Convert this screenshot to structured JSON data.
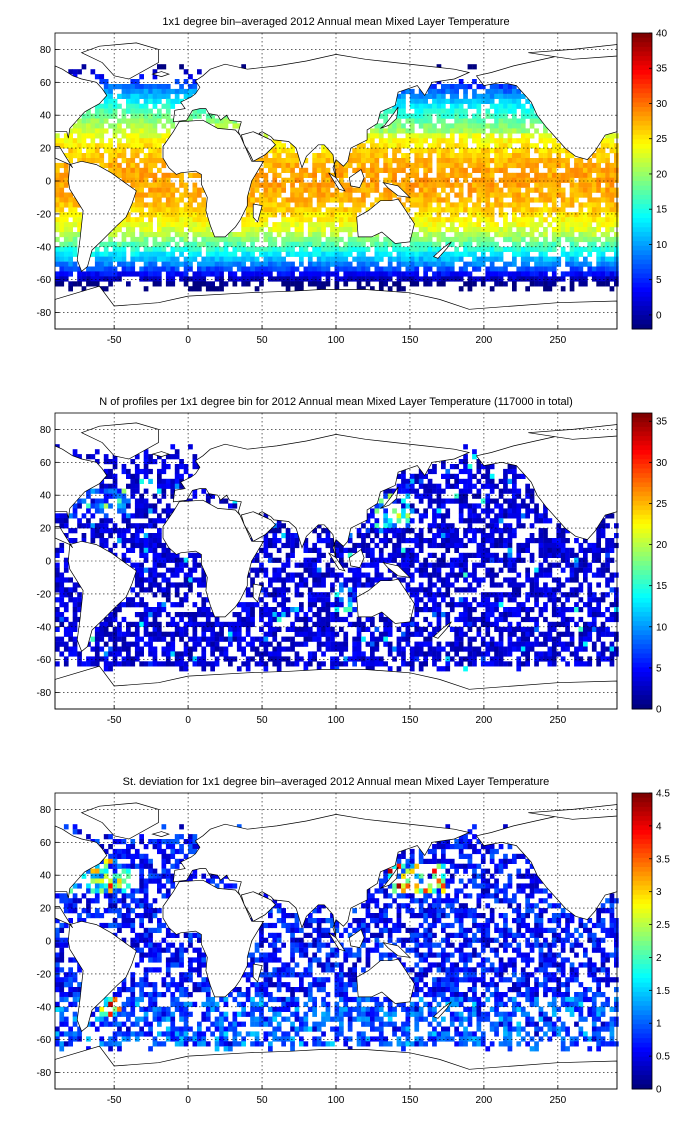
{
  "chart_data": [
    {
      "type": "heatmap",
      "title": "1x1 degree bin–averaged 2012 Annual mean Mixed Layer Temperature",
      "xlim": [
        -90,
        290
      ],
      "ylim": [
        -90,
        90
      ],
      "xticks": [
        -50,
        0,
        50,
        100,
        150,
        200,
        250
      ],
      "yticks": [
        80,
        60,
        40,
        20,
        0,
        -20,
        -40,
        -60,
        -80
      ],
      "grid": true,
      "colormap": "jet",
      "colorbar": {
        "min": -2,
        "max": 40,
        "ticks": [
          40,
          35,
          30,
          25,
          20,
          15,
          10,
          5,
          0
        ]
      },
      "field": "temperature",
      "approx_values": [
        {
          "lat_band": "equator 0",
          "value": 28
        },
        {
          "lat_band": "20",
          "value": 24
        },
        {
          "lat_band": "40",
          "value": 15
        },
        {
          "lat_band": "-40",
          "value": 9
        },
        {
          "lat_band": "-60",
          "value": 1
        }
      ]
    },
    {
      "type": "heatmap",
      "title": "N of profiles per 1x1 degree bin for 2012 Annual mean Mixed Layer Temperature  (117000 in total)",
      "xlim": [
        -90,
        290
      ],
      "ylim": [
        -90,
        90
      ],
      "xticks": [
        -50,
        0,
        50,
        100,
        150,
        200,
        250
      ],
      "yticks": [
        80,
        60,
        40,
        20,
        0,
        -20,
        -40,
        -60,
        -80
      ],
      "grid": true,
      "colormap": "jet",
      "colorbar": {
        "min": 0,
        "max": 36,
        "ticks": [
          35,
          30,
          25,
          20,
          15,
          10,
          5,
          0
        ]
      },
      "field": "count",
      "approx_values": [
        {
          "region": "open ocean",
          "value": 3
        },
        {
          "region": "Kuroshio",
          "value": 25
        }
      ]
    },
    {
      "type": "heatmap",
      "title": "St. deviation for 1x1 degree bin–averaged 2012 Annual mean Mixed Layer Temperature",
      "xlim": [
        -90,
        290
      ],
      "ylim": [
        -90,
        90
      ],
      "xticks": [
        -50,
        0,
        50,
        100,
        150,
        200,
        250
      ],
      "yticks": [
        80,
        60,
        40,
        20,
        0,
        -20,
        -40,
        -60,
        -80
      ],
      "grid": true,
      "colormap": "jet",
      "colorbar": {
        "min": 0,
        "max": 4.5,
        "ticks": [
          4.5,
          4,
          3.5,
          3,
          2.5,
          2,
          1.5,
          1,
          0.5,
          0
        ]
      },
      "field": "stdev",
      "approx_values": [
        {
          "region": "open ocean",
          "value": 0.5
        },
        {
          "region": "Kuroshio",
          "value": 4
        },
        {
          "region": "Gulf Stream",
          "value": 3.5
        }
      ]
    }
  ]
}
